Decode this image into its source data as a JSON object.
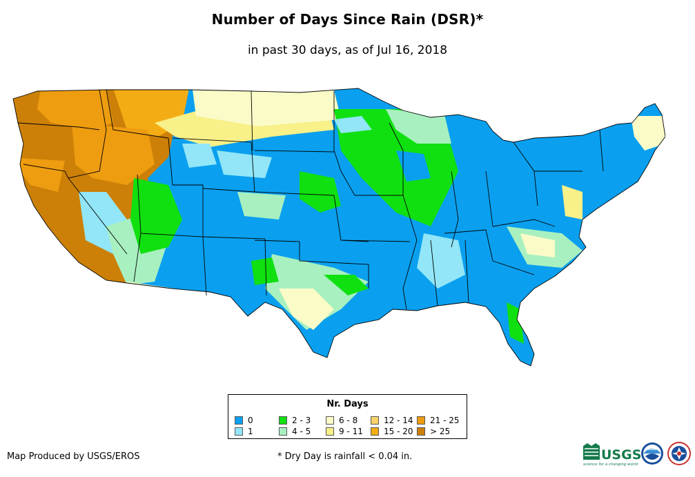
{
  "title": "Number of Days Since Rain (DSR)*",
  "subtitle": "in past 30 days, as of Jul 16, 2018",
  "legend": {
    "title": "Nr. Days",
    "items": [
      {
        "label": "0",
        "color": "#0aa0ef"
      },
      {
        "label": "1",
        "color": "#92e6f8"
      },
      {
        "label": "2 - 3",
        "color": "#10e010"
      },
      {
        "label": "4 - 5",
        "color": "#a8f0c0"
      },
      {
        "label": "6 - 8",
        "color": "#fbfbc8"
      },
      {
        "label": "9 - 11",
        "color": "#f8f088"
      },
      {
        "label": "12 - 14",
        "color": "#f8d468"
      },
      {
        "label": "15 - 20",
        "color": "#f4ac14"
      },
      {
        "label": "21 - 25",
        "color": "#ee9c10"
      },
      {
        "label": "> 25",
        "color": "#cc8008"
      }
    ]
  },
  "footer": {
    "producer": "Map Produced by USGS/EROS",
    "note": "* Dry Day is rainfall < 0.04 in."
  },
  "logos": {
    "usgs": "USGS",
    "usgs_tagline": "science for a changing world",
    "noaa": "NOAA"
  }
}
